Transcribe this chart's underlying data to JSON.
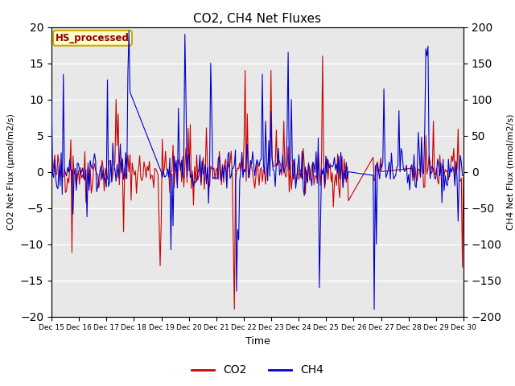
{
  "title": "CO2, CH4 Net Fluxes",
  "xlabel": "Time",
  "ylabel_left": "CO2 Net Flux (μmol/m2/s)",
  "ylabel_right": "CH4 Net Flux (nmol/m2/s)",
  "ylim_left": [
    -20,
    20
  ],
  "ylim_right": [
    -200,
    200
  ],
  "yticks_left": [
    -20,
    -15,
    -10,
    -5,
    0,
    5,
    10,
    15,
    20
  ],
  "yticks_right": [
    -200,
    -150,
    -100,
    -50,
    0,
    50,
    100,
    150,
    200
  ],
  "xtick_labels": [
    "Dec 15",
    "Dec 16",
    "Dec 17",
    "Dec 18",
    "Dec 19",
    "Dec 20",
    "Dec 21",
    "Dec 22",
    "Dec 23",
    "Dec 24",
    "Dec 25",
    "Dec 26",
    "Dec 27",
    "Dec 28",
    "Dec 29",
    "Dec 30"
  ],
  "co2_color": "#cc0000",
  "ch4_color": "#0000cc",
  "legend_label_co2": "CO2",
  "legend_label_ch4": "CH4",
  "text_label": "HS_processed",
  "text_label_color": "#8b0000",
  "text_label_bg": "#ffffcc",
  "text_label_edge": "#ccaa00",
  "bg_color": "#e8e8e8",
  "grid_color": "#ffffff",
  "seed": 42,
  "n_points": 384,
  "fig_width": 6.4,
  "fig_height": 4.8,
  "dpi": 100
}
